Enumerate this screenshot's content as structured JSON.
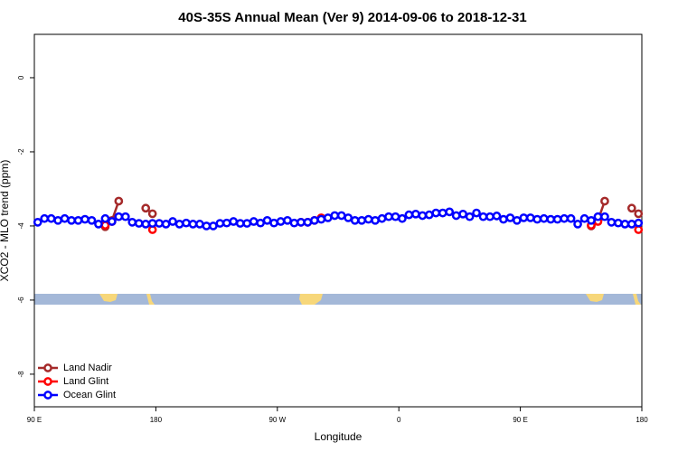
{
  "chart_data": {
    "type": "line",
    "title": "40S-35S Annual Mean (Ver 9)   2014-09-06 to 2018-12-31",
    "x_label": "Longitude",
    "y_label": "XCO2 - MLO trend (ppm)",
    "xlim": [
      90,
      540
    ],
    "ylim": [
      -8.88,
      1.17
    ],
    "xticks": [
      {
        "value": 90,
        "label": "90 E"
      },
      {
        "value": 180,
        "label": "180"
      },
      {
        "value": 270,
        "label": "90 W"
      },
      {
        "value": 360,
        "label": "0"
      },
      {
        "value": 450,
        "label": "90 E"
      },
      {
        "value": 540,
        "label": "180"
      }
    ],
    "yticks": [
      0,
      -2,
      -4,
      -6,
      -8
    ],
    "legend": "bottom-left",
    "series": [
      {
        "name": "Land Nadir",
        "color": "#a52a2a",
        "x": [
          142.5,
          147.5,
          152.5,
          157.5,
          172.5,
          177.5,
          182.5,
          502.5,
          507.5,
          512.5,
          517.5,
          532.5,
          537.5
        ],
        "values": [
          -4.02,
          -3.85,
          -3.33,
          null,
          -3.52,
          -3.67,
          null,
          -4.0,
          -3.85,
          -3.33,
          null,
          -3.52,
          -3.67
        ]
      },
      {
        "name": "Land Glint",
        "color": "#ff0000",
        "x": [
          142.5,
          147.5,
          152.5,
          177.5,
          182.5,
          287.5,
          292.5,
          297.5,
          302.5,
          307.5,
          502.5,
          507.5,
          532.5,
          537.5
        ],
        "values": [
          -3.98,
          -3.88,
          null,
          -4.1,
          null,
          -3.9,
          -3.9,
          -3.85,
          -3.78,
          null,
          -3.98,
          -3.88,
          null,
          -4.1
        ]
      },
      {
        "name": "Ocean Glint",
        "color": "#0000ff",
        "x": [
          92.5,
          97.5,
          102.5,
          107.5,
          112.5,
          117.5,
          122.5,
          127.5,
          132.5,
          137.5,
          142.5,
          147.5,
          152.5,
          157.5,
          162.5,
          167.5,
          172.5,
          177.5,
          182.5,
          187.5,
          192.5,
          197.5,
          202.5,
          207.5,
          212.5,
          217.5,
          222.5,
          227.5,
          232.5,
          237.5,
          242.5,
          247.5,
          252.5,
          257.5,
          262.5,
          267.5,
          272.5,
          277.5,
          282.5,
          287.5,
          292.5,
          297.5,
          302.5,
          307.5,
          312.5,
          317.5,
          322.5,
          327.5,
          332.5,
          337.5,
          342.5,
          347.5,
          352.5,
          357.5,
          362.5,
          367.5,
          372.5,
          377.5,
          382.5,
          387.5,
          392.5,
          397.5,
          402.5,
          407.5,
          412.5,
          417.5,
          422.5,
          427.5,
          432.5,
          437.5,
          442.5,
          447.5,
          452.5,
          457.5,
          462.5,
          467.5,
          472.5,
          477.5,
          482.5,
          487.5,
          492.5,
          497.5,
          502.5,
          507.5,
          512.5,
          517.5,
          522.5,
          527.5,
          532.5,
          537.5
        ],
        "values": [
          -3.9,
          -3.8,
          -3.8,
          -3.85,
          -3.8,
          -3.85,
          -3.85,
          -3.82,
          -3.85,
          -3.95,
          -3.8,
          -3.88,
          -3.75,
          -3.75,
          -3.9,
          -3.93,
          -3.95,
          -3.93,
          -3.93,
          -3.95,
          -3.88,
          -3.95,
          -3.92,
          -3.95,
          -3.95,
          -4.0,
          -4.0,
          -3.93,
          -3.92,
          -3.88,
          -3.93,
          -3.93,
          -3.88,
          -3.92,
          -3.85,
          -3.92,
          -3.88,
          -3.85,
          -3.92,
          -3.9,
          -3.9,
          -3.85,
          -3.82,
          -3.78,
          -3.72,
          -3.72,
          -3.78,
          -3.85,
          -3.85,
          -3.82,
          -3.85,
          -3.8,
          -3.75,
          -3.75,
          -3.8,
          -3.7,
          -3.68,
          -3.72,
          -3.7,
          -3.65,
          -3.65,
          -3.62,
          -3.72,
          -3.68,
          -3.75,
          -3.65,
          -3.75,
          -3.75,
          -3.73,
          -3.82,
          -3.78,
          -3.85,
          -3.78,
          -3.78,
          -3.82,
          -3.8,
          -3.82,
          -3.82,
          -3.8,
          -3.8,
          -3.95,
          -3.8,
          -3.85,
          -3.75,
          -3.75,
          -3.9,
          -3.92,
          -3.95,
          -3.95,
          -3.92
        ]
      }
    ]
  }
}
